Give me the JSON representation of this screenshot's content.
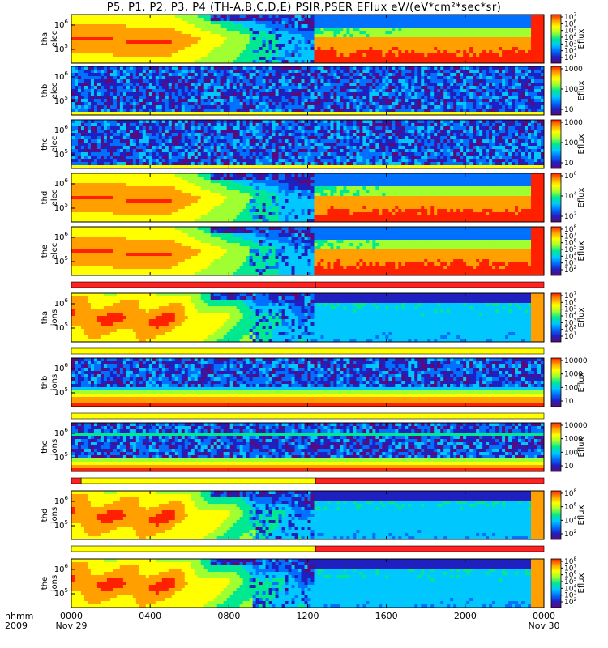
{
  "chart_data": {
    "type": "heatmap",
    "title": "P5, P1, P2, P3, P4 (TH-A,B,C,D,E) PSIR,PSER EFlux eV/(eV*cm²*sec*sr)",
    "xlabel_top": "hhmm",
    "xlabel_bottom": "2009",
    "xticks": [
      {
        "label": "0000",
        "sub": "Nov 29",
        "value": 0
      },
      {
        "label": "0400",
        "sub": "",
        "value": 4
      },
      {
        "label": "0800",
        "sub": "",
        "value": 8
      },
      {
        "label": "1200",
        "sub": "",
        "value": 12
      },
      {
        "label": "1600",
        "sub": "",
        "value": 16
      },
      {
        "label": "2000",
        "sub": "",
        "value": 20
      },
      {
        "label": "0000",
        "sub": "Nov 30",
        "value": 24
      }
    ],
    "xlim_hours": [
      0,
      24
    ],
    "colorbar_label": "Eflux",
    "colormap": [
      "#5a0a7a",
      "#2020c0",
      "#0070ff",
      "#00c8ff",
      "#00e890",
      "#a0ff30",
      "#ffff00",
      "#ffa000",
      "#ff2000"
    ],
    "panels": [
      {
        "id": "tha_elec",
        "label1": "tha",
        "label2": "elec",
        "yticks": [
          {
            "text": "10",
            "exp": "6"
          },
          {
            "text": "10",
            "exp": "5"
          }
        ],
        "cbticks": [
          {
            "text": "10",
            "exp": "7"
          },
          {
            "text": "10",
            "exp": "6"
          },
          {
            "text": "10",
            "exp": "5"
          },
          {
            "text": "10",
            "exp": "4"
          },
          {
            "text": "10",
            "exp": "3"
          },
          {
            "text": "10",
            "exp": "2"
          },
          {
            "text": "10",
            "exp": "1"
          }
        ],
        "kind": "sheath",
        "seed": 11
      },
      {
        "id": "thb_elec",
        "label1": "thb",
        "label2": "elec",
        "yticks": [
          {
            "text": "10",
            "exp": "6"
          },
          {
            "text": "10",
            "exp": "5"
          }
        ],
        "cbticks": [
          {
            "text": "1000",
            "exp": ""
          },
          {
            "text": "100",
            "exp": ""
          },
          {
            "text": "10",
            "exp": ""
          }
        ],
        "kind": "noise",
        "seed": 23
      },
      {
        "id": "thc_elec",
        "label1": "thc",
        "label2": "elec",
        "yticks": [
          {
            "text": "10",
            "exp": "6"
          },
          {
            "text": "10",
            "exp": "5"
          }
        ],
        "cbticks": [
          {
            "text": "1000",
            "exp": ""
          },
          {
            "text": "100",
            "exp": ""
          },
          {
            "text": "10",
            "exp": ""
          }
        ],
        "kind": "noise",
        "seed": 37
      },
      {
        "id": "thd_elec",
        "label1": "thd",
        "label2": "elec",
        "yticks": [
          {
            "text": "10",
            "exp": "6"
          },
          {
            "text": "10",
            "exp": "5"
          }
        ],
        "cbticks": [
          {
            "text": "10",
            "exp": "6"
          },
          {
            "text": "10",
            "exp": "4"
          },
          {
            "text": "10",
            "exp": "2"
          }
        ],
        "kind": "sheath",
        "seed": 41
      },
      {
        "id": "the_elec",
        "label1": "the",
        "label2": "elec",
        "yticks": [
          {
            "text": "10",
            "exp": "6"
          },
          {
            "text": "10",
            "exp": "5"
          }
        ],
        "cbticks": [
          {
            "text": "10",
            "exp": "8"
          },
          {
            "text": "10",
            "exp": "7"
          },
          {
            "text": "10",
            "exp": "6"
          },
          {
            "text": "10",
            "exp": "5"
          },
          {
            "text": "10",
            "exp": "4"
          },
          {
            "text": "10",
            "exp": "3"
          },
          {
            "text": "10",
            "exp": "2"
          }
        ],
        "kind": "sheath",
        "seed": 53
      },
      {
        "id": "tha_ions",
        "label1": "tha",
        "label2": "ions",
        "yticks": [
          {
            "text": "10",
            "exp": "6"
          },
          {
            "text": "10",
            "exp": "5"
          }
        ],
        "cbticks": [
          {
            "text": "10",
            "exp": "7"
          },
          {
            "text": "10",
            "exp": "6"
          },
          {
            "text": "10",
            "exp": "5"
          },
          {
            "text": "10",
            "exp": "4"
          },
          {
            "text": "10",
            "exp": "3"
          },
          {
            "text": "10",
            "exp": "2"
          },
          {
            "text": "10",
            "exp": "1"
          }
        ],
        "kind": "sheath_ion",
        "seed": 61
      },
      {
        "id": "thb_ions",
        "label1": "thb",
        "label2": "ions",
        "yticks": [
          {
            "text": "10",
            "exp": "6"
          },
          {
            "text": "10",
            "exp": "5"
          }
        ],
        "cbticks": [
          {
            "text": "10000",
            "exp": ""
          },
          {
            "text": "1000",
            "exp": ""
          },
          {
            "text": "100",
            "exp": ""
          },
          {
            "text": "10",
            "exp": ""
          }
        ],
        "kind": "noise_ion",
        "seed": 71
      },
      {
        "id": "thc_ions",
        "label1": "thc",
        "label2": "ions",
        "yticks": [
          {
            "text": "10",
            "exp": "6"
          },
          {
            "text": "10",
            "exp": "5"
          }
        ],
        "cbticks": [
          {
            "text": "10000",
            "exp": ""
          },
          {
            "text": "1000",
            "exp": ""
          },
          {
            "text": "100",
            "exp": ""
          },
          {
            "text": "10",
            "exp": ""
          }
        ],
        "kind": "noise_ion2",
        "seed": 83
      },
      {
        "id": "thd_ions",
        "label1": "thd",
        "label2": "ions",
        "yticks": [
          {
            "text": "10",
            "exp": "6"
          },
          {
            "text": "10",
            "exp": "5"
          }
        ],
        "cbticks": [
          {
            "text": "10",
            "exp": "8"
          },
          {
            "text": "10",
            "exp": "6"
          },
          {
            "text": "10",
            "exp": "4"
          },
          {
            "text": "10",
            "exp": "2"
          }
        ],
        "kind": "sheath_ion",
        "seed": 97
      },
      {
        "id": "the_ions",
        "label1": "the",
        "label2": "ions",
        "yticks": [
          {
            "text": "10",
            "exp": "6"
          },
          {
            "text": "10",
            "exp": "5"
          }
        ],
        "cbticks": [
          {
            "text": "10",
            "exp": "8"
          },
          {
            "text": "10",
            "exp": "7"
          },
          {
            "text": "10",
            "exp": "6"
          },
          {
            "text": "10",
            "exp": "5"
          },
          {
            "text": "10",
            "exp": "4"
          },
          {
            "text": "10",
            "exp": "3"
          },
          {
            "text": "10",
            "exp": "2"
          }
        ],
        "kind": "sheath_ion",
        "seed": 103
      }
    ],
    "mode_bars": [
      {
        "after_panel": 4,
        "segments": [
          {
            "from": 0,
            "to": 12.4,
            "color": "#ff2020"
          },
          {
            "from": 12.4,
            "to": 24,
            "color": "#ff2020"
          }
        ]
      },
      {
        "after_panel": 5,
        "segments": [
          {
            "from": 0,
            "to": 24,
            "color": "#ffff00"
          }
        ]
      },
      {
        "after_panel": 6,
        "segments": [
          {
            "from": 0,
            "to": 24,
            "color": "#ffff00"
          }
        ]
      },
      {
        "after_panel": 7,
        "segments": [
          {
            "from": 0,
            "to": 0.5,
            "color": "#ff2020"
          },
          {
            "from": 0.5,
            "to": 12.4,
            "color": "#ffff00"
          },
          {
            "from": 12.4,
            "to": 24,
            "color": "#ff2020"
          }
        ]
      },
      {
        "after_panel": 8,
        "segments": [
          {
            "from": 0,
            "to": 12.4,
            "color": "#ffff00"
          },
          {
            "from": 12.4,
            "to": 24,
            "color": "#ff2020"
          }
        ]
      }
    ]
  }
}
